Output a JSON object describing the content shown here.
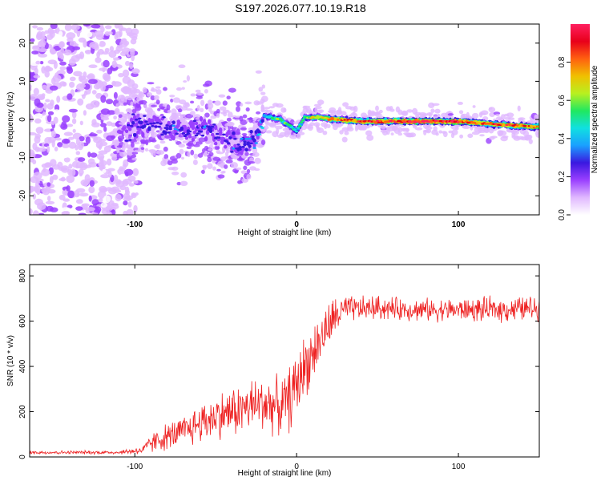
{
  "page": {
    "title": "S197.2026.077.10.19.R18"
  },
  "colors": {
    "snr_line": "#ee2222",
    "frame": "#000000"
  },
  "colormap": [
    "#ffffff",
    "#e0b8ff",
    "#9a40ff",
    "#3a18e0",
    "#1aa0ff",
    "#10e0e0",
    "#20e860",
    "#b8f020",
    "#f0c000",
    "#ff6010",
    "#e8001a",
    "#ff2060"
  ],
  "chart_data": [
    {
      "type": "heatmap",
      "title": "S197.2026.077.10.19.R18",
      "xlabel": "Height of straight line (km)",
      "ylabel": "Frequency (Hz)",
      "xlim": [
        -165,
        150
      ],
      "ylim": [
        -25,
        25
      ],
      "x_ticks": [
        {
          "value": -100,
          "label": "-100"
        },
        {
          "value": 0,
          "label": "0"
        },
        {
          "value": 100,
          "label": "100"
        }
      ],
      "y_ticks": [
        {
          "value": 20,
          "label": "20"
        },
        {
          "value": 10,
          "label": "10"
        },
        {
          "value": 0,
          "label": "0"
        },
        {
          "value": -10,
          "label": "-10"
        },
        {
          "value": -20,
          "label": "-20"
        }
      ],
      "colorbar": {
        "label": "Normalized spectral amplitude",
        "range": [
          0,
          1
        ],
        "ticks": [
          {
            "value": 0.0,
            "label": "0.0"
          },
          {
            "value": 0.2,
            "label": "0.2"
          },
          {
            "value": 0.4,
            "label": "0.4"
          },
          {
            "value": 0.6,
            "label": "0.6"
          },
          {
            "value": 0.8,
            "label": "0.8"
          }
        ]
      },
      "noise_region_x": [
        -165,
        -100
      ],
      "ridge": [
        {
          "x": -105,
          "freq": -2.0,
          "amp": 0.25
        },
        {
          "x": -95,
          "freq": -1.5,
          "amp": 0.3
        },
        {
          "x": -85,
          "freq": -1.0,
          "amp": 0.25
        },
        {
          "x": -75,
          "freq": -2.0,
          "amp": 0.3
        },
        {
          "x": -65,
          "freq": -3.0,
          "amp": 0.25
        },
        {
          "x": -55,
          "freq": -2.0,
          "amp": 0.3
        },
        {
          "x": -45,
          "freq": -5.0,
          "amp": 0.25
        },
        {
          "x": -35,
          "freq": -7.0,
          "amp": 0.3
        },
        {
          "x": -25,
          "freq": -5.0,
          "amp": 0.35
        },
        {
          "x": -20,
          "freq": 1.0,
          "amp": 0.4
        },
        {
          "x": -10,
          "freq": 0.0,
          "amp": 0.6
        },
        {
          "x": 0,
          "freq": -3.0,
          "amp": 0.45
        },
        {
          "x": 5,
          "freq": 0.5,
          "amp": 0.55
        },
        {
          "x": 15,
          "freq": 0.5,
          "amp": 0.75
        },
        {
          "x": 25,
          "freq": 0.0,
          "amp": 0.8
        },
        {
          "x": 40,
          "freq": -0.5,
          "amp": 0.85
        },
        {
          "x": 60,
          "freq": -0.5,
          "amp": 0.9
        },
        {
          "x": 80,
          "freq": -0.5,
          "amp": 0.95
        },
        {
          "x": 100,
          "freq": -0.5,
          "amp": 0.9
        },
        {
          "x": 115,
          "freq": -1.0,
          "amp": 0.85
        },
        {
          "x": 130,
          "freq": -1.5,
          "amp": 0.85
        },
        {
          "x": 150,
          "freq": -2.0,
          "amp": 0.8
        }
      ]
    },
    {
      "type": "line",
      "xlabel": "Height of straight line (km)",
      "ylabel": "SNR (10 * v/v)",
      "xlim": [
        -165,
        150
      ],
      "ylim": [
        0,
        850
      ],
      "x_ticks": [
        {
          "value": -100,
          "label": "-100"
        },
        {
          "value": 0,
          "label": "0"
        },
        {
          "value": 100,
          "label": "100"
        }
      ],
      "y_ticks": [
        {
          "value": 0,
          "label": "0"
        },
        {
          "value": 200,
          "label": "200"
        },
        {
          "value": 400,
          "label": "400"
        },
        {
          "value": 600,
          "label": "600"
        },
        {
          "value": 800,
          "label": "800"
        }
      ],
      "series": [
        {
          "name": "SNR",
          "x": [
            -165,
            -140,
            -110,
            -95,
            -90,
            -80,
            -70,
            -60,
            -50,
            -40,
            -30,
            -20,
            -10,
            -5,
            0,
            5,
            10,
            15,
            20,
            25,
            30,
            40,
            50,
            60,
            80,
            100,
            120,
            140,
            150
          ],
          "mean": [
            20,
            20,
            20,
            30,
            60,
            90,
            110,
            150,
            180,
            200,
            220,
            240,
            220,
            250,
            320,
            400,
            460,
            520,
            580,
            630,
            650,
            655,
            660,
            655,
            650,
            650,
            650,
            655,
            660
          ],
          "spread": [
            8,
            8,
            8,
            20,
            45,
            60,
            70,
            90,
            100,
            110,
            120,
            130,
            120,
            140,
            150,
            140,
            130,
            110,
            100,
            90,
            60,
            55,
            55,
            50,
            50,
            50,
            55,
            55,
            55
          ]
        }
      ]
    }
  ]
}
